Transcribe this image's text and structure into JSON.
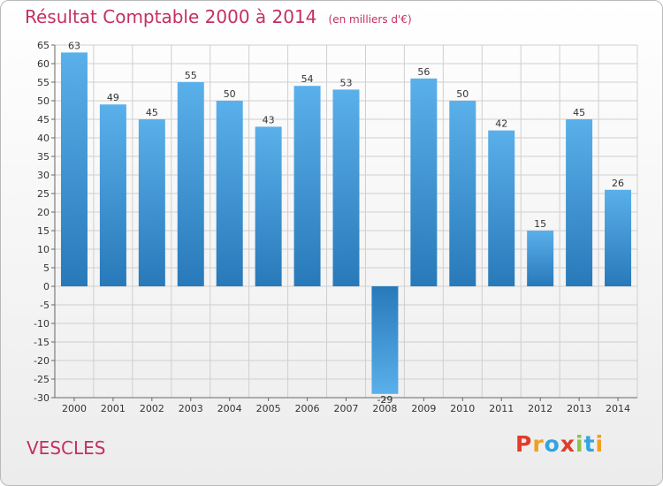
{
  "header": {
    "title": "Résultat Comptable 2000 à 2014",
    "unit": "(en milliers d'€)"
  },
  "commune": "VESCLES",
  "logo": {
    "letters": [
      "P",
      "r",
      "o",
      "x",
      "i",
      "t",
      "i"
    ],
    "colors": [
      "#e23c2a",
      "#f0a020",
      "#33a4e0",
      "#e23c2a",
      "#8bc34a",
      "#33a4e0",
      "#f0a020"
    ]
  },
  "colors": {
    "bar_top": "#5ab0ea",
    "bar_bottom": "#2879b9",
    "title": "#c4305f",
    "grid": "#cfcfcf"
  },
  "chart_data": {
    "type": "bar",
    "title": "Résultat Comptable 2000 à 2014",
    "subtitle": "(en milliers d'€)",
    "xlabel": "",
    "ylabel": "",
    "categories": [
      "2000",
      "2001",
      "2002",
      "2003",
      "2004",
      "2005",
      "2006",
      "2007",
      "2008",
      "2009",
      "2010",
      "2011",
      "2012",
      "2013",
      "2014"
    ],
    "values": [
      63,
      49,
      45,
      55,
      50,
      43,
      54,
      53,
      -29,
      56,
      50,
      42,
      15,
      45,
      26
    ],
    "value_labels": [
      "63",
      "49",
      "45",
      "55",
      "50",
      "43",
      "54",
      "53",
      "-29",
      "56",
      "50",
      "42",
      "15",
      "45",
      "26"
    ],
    "ylim": [
      -30,
      65
    ],
    "yticks": [
      65,
      60,
      55,
      50,
      45,
      40,
      35,
      30,
      25,
      20,
      15,
      10,
      5,
      0,
      -5,
      -10,
      -15,
      -20,
      -25,
      -30
    ],
    "ytick_labels": [
      "65",
      "60",
      "55",
      "50",
      "45",
      "40",
      "35",
      "30",
      "25",
      "20",
      "15",
      "10",
      "5",
      "0",
      "-5",
      "-10",
      "-15",
      "-20",
      "-25",
      "-30"
    ],
    "grid": true
  }
}
